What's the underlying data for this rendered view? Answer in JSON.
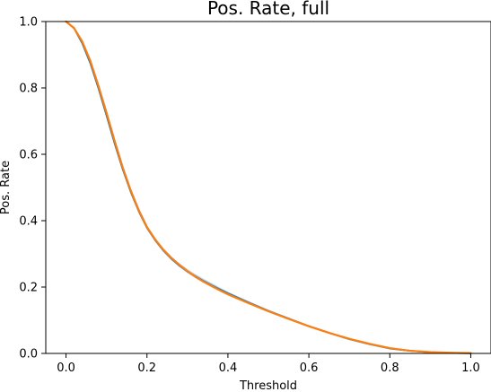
{
  "chart_data": {
    "type": "line",
    "title": "Pos. Rate, full",
    "xlabel": "Threshold",
    "ylabel": "Pos. Rate",
    "xlim": [
      -0.05,
      1.05
    ],
    "ylim": [
      0.0,
      1.0
    ],
    "xticks": [
      {
        "value": 0.0,
        "label": "0.0"
      },
      {
        "value": 0.2,
        "label": "0.2"
      },
      {
        "value": 0.4,
        "label": "0.4"
      },
      {
        "value": 0.6,
        "label": "0.6"
      },
      {
        "value": 0.8,
        "label": "0.8"
      },
      {
        "value": 1.0,
        "label": "1.0"
      }
    ],
    "yticks": [
      {
        "value": 0.0,
        "label": "0.0"
      },
      {
        "value": 0.2,
        "label": "0.2"
      },
      {
        "value": 0.4,
        "label": "0.4"
      },
      {
        "value": 0.6,
        "label": "0.6"
      },
      {
        "value": 0.8,
        "label": "0.8"
      },
      {
        "value": 1.0,
        "label": "1.0"
      }
    ],
    "grid": false,
    "legend": false,
    "band": {
      "color": "#b5cfe3",
      "x": [
        0.0,
        0.02,
        0.04,
        0.06,
        0.08,
        0.1,
        0.12,
        0.14,
        0.16,
        0.18,
        0.2,
        0.22,
        0.24,
        0.26,
        0.28,
        0.3,
        0.32,
        0.34,
        0.36,
        0.38,
        0.4,
        0.45,
        0.5,
        0.55,
        0.6,
        0.65,
        0.7,
        0.75,
        0.8,
        0.85,
        0.9,
        0.95,
        1.0
      ],
      "upper": [
        1.0,
        0.985,
        0.945,
        0.885,
        0.81,
        0.73,
        0.645,
        0.565,
        0.495,
        0.435,
        0.385,
        0.348,
        0.318,
        0.293,
        0.272,
        0.254,
        0.239,
        0.225,
        0.212,
        0.199,
        0.186,
        0.158,
        0.132,
        0.108,
        0.085,
        0.064,
        0.045,
        0.029,
        0.016,
        0.008,
        0.004,
        0.002,
        0.001
      ],
      "lower": [
        1.0,
        0.975,
        0.93,
        0.87,
        0.795,
        0.712,
        0.628,
        0.55,
        0.482,
        0.423,
        0.374,
        0.337,
        0.306,
        0.281,
        0.26,
        0.242,
        0.226,
        0.212,
        0.199,
        0.187,
        0.175,
        0.149,
        0.124,
        0.101,
        0.079,
        0.059,
        0.041,
        0.026,
        0.014,
        0.007,
        0.003,
        0.001,
        0.0
      ]
    },
    "series": [
      {
        "color": "#1f77b4",
        "x": [
          0.0,
          0.02,
          0.04,
          0.06,
          0.08,
          0.1,
          0.12,
          0.14,
          0.16,
          0.18,
          0.2,
          0.22,
          0.24,
          0.26,
          0.28,
          0.3,
          0.32,
          0.34,
          0.36,
          0.38,
          0.4,
          0.45,
          0.5,
          0.55,
          0.6,
          0.65,
          0.7,
          0.75,
          0.8,
          0.85,
          0.9,
          0.95,
          1.0
        ],
        "y": [
          1.0,
          0.98,
          0.935,
          0.875,
          0.8,
          0.718,
          0.634,
          0.556,
          0.487,
          0.428,
          0.379,
          0.342,
          0.311,
          0.286,
          0.265,
          0.247,
          0.232,
          0.218,
          0.205,
          0.193,
          0.181,
          0.154,
          0.128,
          0.105,
          0.082,
          0.062,
          0.043,
          0.028,
          0.015,
          0.008,
          0.0035,
          0.0015,
          0.0005
        ]
      },
      {
        "color": "#ff7f0e",
        "x": [
          0.0,
          0.02,
          0.04,
          0.06,
          0.08,
          0.1,
          0.12,
          0.14,
          0.16,
          0.18,
          0.2,
          0.22,
          0.24,
          0.26,
          0.28,
          0.3,
          0.32,
          0.34,
          0.36,
          0.38,
          0.4,
          0.45,
          0.5,
          0.55,
          0.6,
          0.65,
          0.7,
          0.75,
          0.8,
          0.85,
          0.9,
          0.95,
          1.0
        ],
        "y": [
          1.0,
          0.98,
          0.94,
          0.882,
          0.807,
          0.726,
          0.641,
          0.561,
          0.491,
          0.431,
          0.381,
          0.344,
          0.313,
          0.288,
          0.267,
          0.248,
          0.231,
          0.216,
          0.203,
          0.19,
          0.178,
          0.152,
          0.127,
          0.104,
          0.082,
          0.062,
          0.044,
          0.029,
          0.016,
          0.008,
          0.004,
          0.002,
          0.001
        ]
      }
    ]
  }
}
